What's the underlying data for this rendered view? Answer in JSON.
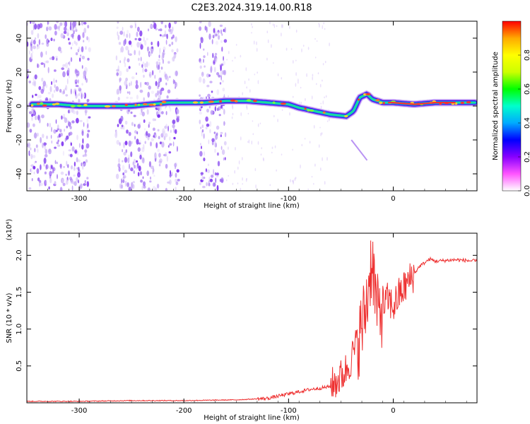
{
  "figure": {
    "title": "C2E3.2024.319.14.00.R18"
  },
  "chart_data": [
    {
      "type": "heatmap",
      "xlabel": "Height of straight line (km)",
      "ylabel": "Frequency (Hz)",
      "xlim": [
        -350,
        80
      ],
      "ylim": [
        -50,
        50
      ],
      "xticks": [
        -300,
        -200,
        -100,
        0
      ],
      "yticks": [
        -40,
        -20,
        0,
        20,
        40
      ],
      "colorbar": {
        "label": "Normalized spectral amplitude",
        "range": [
          0,
          1
        ],
        "ticks": [
          0.0,
          0.2,
          0.4,
          0.6,
          0.8
        ],
        "colormap": [
          "#ffffff",
          "#ff55ff",
          "#8800ff",
          "#0000ff",
          "#00aaff",
          "#00ffcc",
          "#00ff00",
          "#ccff00",
          "#ffff00",
          "#ffaa00",
          "#ff0000"
        ]
      },
      "ridge_frequency_hz": [
        [
          -345,
          1
        ],
        [
          -320,
          1
        ],
        [
          -300,
          0
        ],
        [
          -280,
          0
        ],
        [
          -265,
          0
        ],
        [
          -250,
          0
        ],
        [
          -215,
          2
        ],
        [
          -200,
          2
        ],
        [
          -180,
          2
        ],
        [
          -160,
          3
        ],
        [
          -140,
          3
        ],
        [
          -120,
          2
        ],
        [
          -100,
          1
        ],
        [
          -90,
          -1
        ],
        [
          -75,
          -3
        ],
        [
          -60,
          -5
        ],
        [
          -45,
          -6
        ],
        [
          -38,
          -3
        ],
        [
          -32,
          5
        ],
        [
          -25,
          7
        ],
        [
          -20,
          4
        ],
        [
          -10,
          2
        ],
        [
          0,
          2
        ],
        [
          20,
          1
        ],
        [
          40,
          2
        ],
        [
          60,
          2
        ],
        [
          78,
          2
        ]
      ],
      "noise_bands_km": [
        [
          -350,
          -290
        ],
        [
          -265,
          -205
        ],
        [
          -185,
          -160
        ]
      ]
    },
    {
      "type": "line",
      "xlabel": "Height of straight line (km)",
      "ylabel": "SNR (10 * v/v)",
      "yexponent_label": "(x10⁴)",
      "xlim": [
        -350,
        80
      ],
      "ylim": [
        0,
        2.3
      ],
      "xticks": [
        -300,
        -200,
        -100,
        0
      ],
      "yticks": [
        0.5,
        1.0,
        1.5,
        2.0
      ],
      "color": "#ee3030",
      "series": [
        {
          "x": [
            -350,
            -300,
            -250,
            -200,
            -150,
            -120,
            -100,
            -80,
            -70,
            -60,
            -50,
            -45,
            -40,
            -35,
            -30,
            -25,
            -22,
            -20,
            -18,
            -15,
            -10,
            -5,
            0,
            5,
            10,
            15,
            20,
            25,
            30,
            35,
            40,
            50,
            60,
            70,
            80
          ],
          "values": [
            0.02,
            0.02,
            0.03,
            0.03,
            0.04,
            0.06,
            0.12,
            0.18,
            0.2,
            0.22,
            0.35,
            0.45,
            0.6,
            0.8,
            1.0,
            1.4,
            1.8,
            2.0,
            1.6,
            1.2,
            1.3,
            1.4,
            1.3,
            1.45,
            1.55,
            1.65,
            1.75,
            1.85,
            1.9,
            1.95,
            1.92,
            1.93,
            1.94,
            1.93,
            1.92
          ]
        }
      ]
    }
  ]
}
